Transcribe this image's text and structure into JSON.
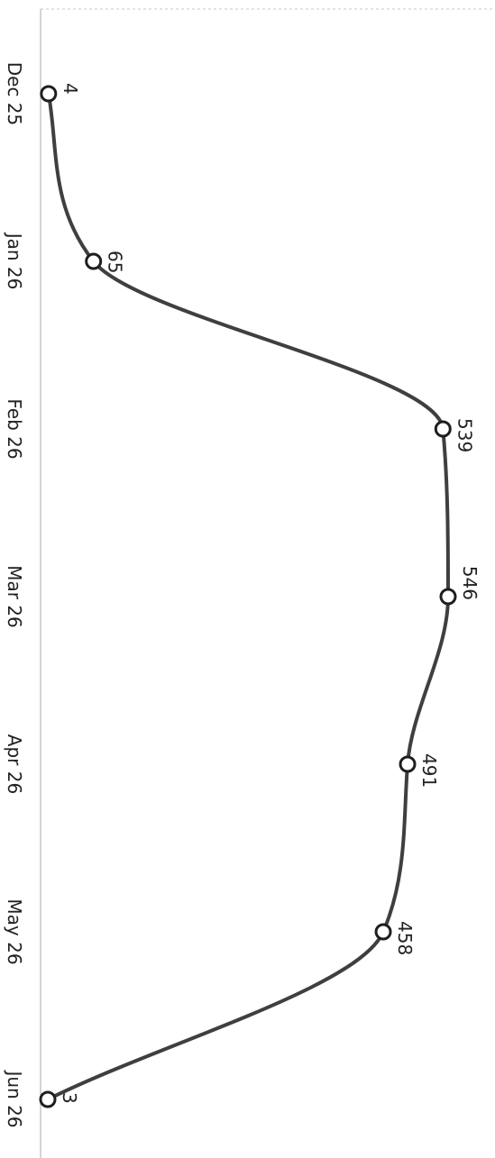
{
  "chart_data": {
    "type": "line",
    "orientation": "rotated",
    "title": "",
    "xlabel": "",
    "ylabel": "",
    "categories": [
      "Dec 25",
      "Jan 26",
      "Feb 26",
      "Mar 26",
      "Apr 26",
      "May 26",
      "Jun 26"
    ],
    "series": [
      {
        "values": [
          4,
          65,
          539,
          546,
          491,
          458,
          3
        ]
      }
    ],
    "ylim": [
      -5,
      600
    ],
    "grid": false,
    "legend": "none",
    "smooth": true,
    "data_labels": true
  },
  "colors": {
    "line": "#3f3f3f",
    "marker_fill": "#ffffff",
    "marker_stroke": "#1e1e1e",
    "axis": "#aaaaaa",
    "text": "#222222"
  }
}
